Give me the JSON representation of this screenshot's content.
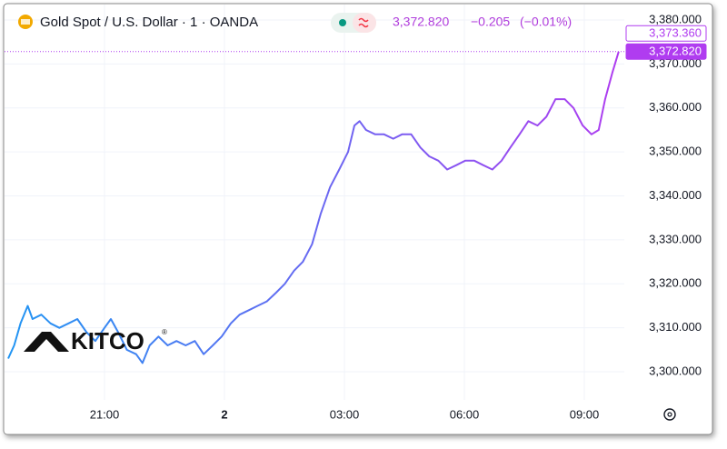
{
  "chart_data": {
    "type": "line",
    "title": "Gold Spot / U.S. Dollar · 1 · OANDA",
    "last_price": "3,372.820",
    "change": "−0.205",
    "change_pct": "(−0.01%)",
    "logo": {
      "text": "KITCO",
      "mark": "®"
    },
    "colors": [
      "#2196f3",
      "#b03cf0"
    ],
    "x": [
      18.59,
      18.74,
      18.9,
      19.08,
      19.2,
      19.42,
      19.65,
      19.87,
      20.1,
      20.32,
      20.55,
      20.77,
      21.0,
      21.16,
      21.34,
      21.56,
      21.79,
      21.95,
      22.13,
      22.35,
      22.58,
      22.8,
      23.03,
      23.26,
      23.48,
      23.71,
      23.93,
      24.16,
      24.38,
      24.61,
      24.83,
      25.06,
      25.29,
      25.51,
      25.74,
      25.96,
      26.19,
      26.41,
      26.64,
      26.87,
      27.09,
      27.25,
      27.38,
      27.54,
      27.77,
      27.99,
      28.22,
      28.44,
      28.67,
      28.9,
      29.12,
      29.35,
      29.57,
      29.8,
      30.02,
      30.25,
      30.47,
      30.7,
      30.93,
      31.15,
      31.38,
      31.6,
      31.83,
      32.05,
      32.28,
      32.51,
      32.73,
      32.96,
      33.18,
      33.36,
      33.52,
      33.7,
      33.86
    ],
    "values": [
      3303,
      3306,
      3311,
      3315,
      3312,
      3313,
      3311,
      3310,
      3311,
      3312,
      3309,
      3307,
      3310,
      3312,
      3309,
      3305,
      3304,
      3302,
      3306,
      3308,
      3306,
      3307,
      3306,
      3307,
      3304,
      3306,
      3308,
      3311,
      3313,
      3314,
      3315,
      3316,
      3318,
      3320,
      3323,
      3325,
      3329,
      3336,
      3342,
      3346,
      3350,
      3356,
      3357,
      3355,
      3354,
      3354,
      3353,
      3354,
      3354,
      3351,
      3349,
      3348,
      3346,
      3347,
      3348,
      3348,
      3347,
      3346,
      3348,
      3351,
      3354,
      3357,
      3356,
      3358,
      3362,
      3362,
      3360,
      3356,
      3354,
      3355,
      3362,
      3368,
      3372.82
    ],
    "xlim": [
      18.5,
      34.0
    ],
    "xticks": [
      {
        "value": 21,
        "label": "21:00"
      },
      {
        "value": 24,
        "label": "2"
      },
      {
        "value": 27,
        "label": "03:00"
      },
      {
        "value": 30,
        "label": "06:00"
      },
      {
        "value": 33,
        "label": "09:00"
      }
    ],
    "ylim": [
      3293.6,
      3382.9
    ],
    "yticks": [
      {
        "value": 3300,
        "label": "3,300.000"
      },
      {
        "value": 3310,
        "label": "3,310.000"
      },
      {
        "value": 3320,
        "label": "3,320.000"
      },
      {
        "value": 3330,
        "label": "3,330.000"
      },
      {
        "value": 3340,
        "label": "3,340.000"
      },
      {
        "value": 3350,
        "label": "3,350.000"
      },
      {
        "value": 3360,
        "label": "3,360.000"
      },
      {
        "value": 3370,
        "label": "3,370.000"
      },
      {
        "value": 3380,
        "label": "3,380.000"
      }
    ],
    "price_labels": [
      {
        "value": 3373.36,
        "label": "3,373.360"
      },
      {
        "value": 3372.82,
        "label": "3,372.820"
      }
    ],
    "grid": true
  }
}
